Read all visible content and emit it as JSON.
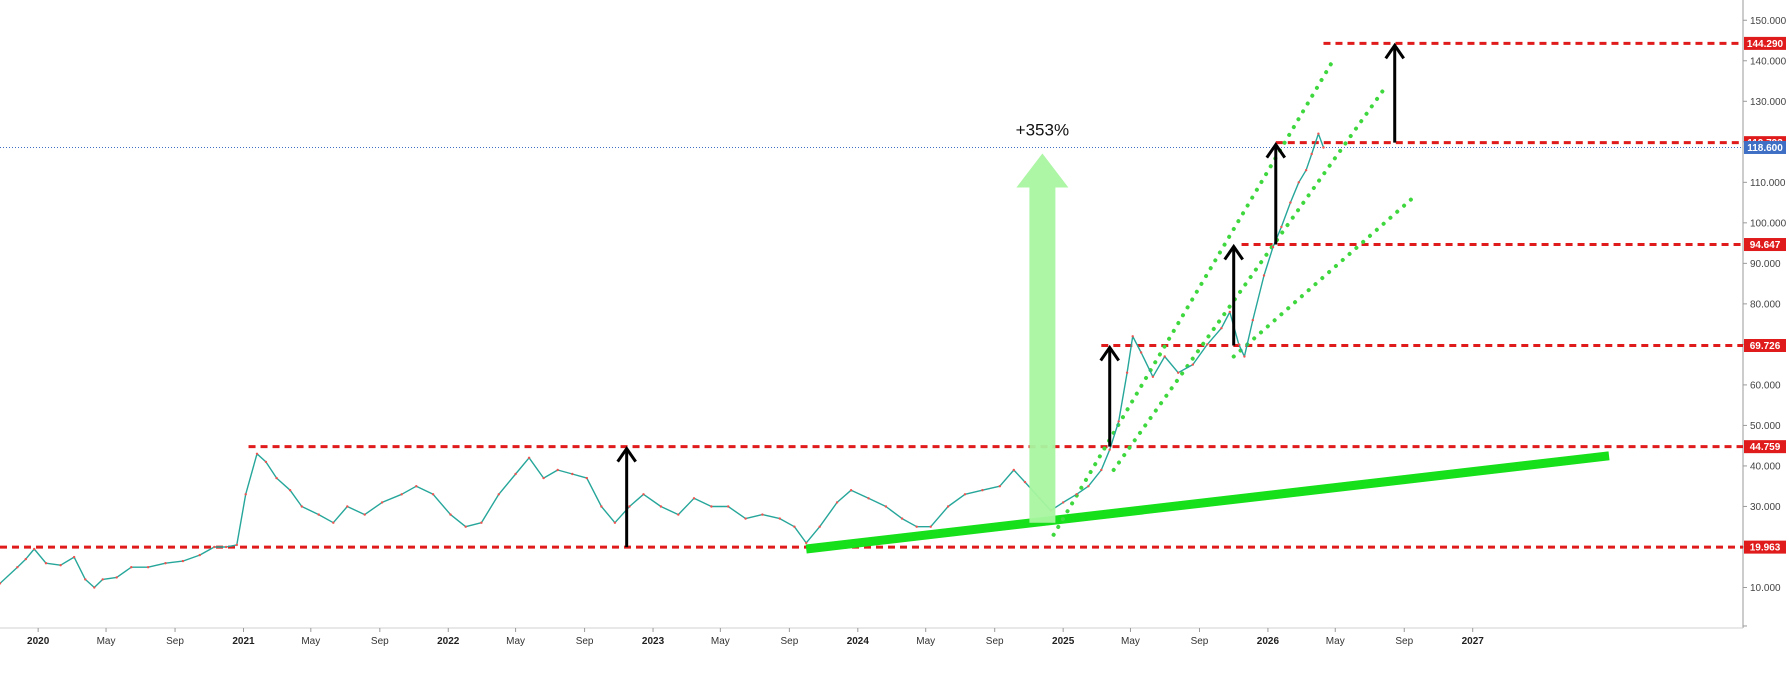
{
  "chart_data": {
    "type": "line",
    "title": "",
    "xlabel": "",
    "ylabel": "",
    "x_range": [
      "2019-10-25",
      "2028-04-25"
    ],
    "ylim": [
      0,
      155
    ],
    "y_ticks": [
      "10.000",
      "20.000",
      "30.000",
      "40.000",
      "50.000",
      "60.000",
      "70.000",
      "80.000",
      "90.000",
      "100.000",
      "110.000",
      "120.000",
      "130.000",
      "140.000",
      "150.000"
    ],
    "x_ticks": [
      {
        "label": "2020",
        "date": "2020-01-01",
        "year": true
      },
      {
        "label": "May",
        "date": "2020-05-01",
        "year": false
      },
      {
        "label": "Sep",
        "date": "2020-09-01",
        "year": false
      },
      {
        "label": "2021",
        "date": "2021-01-01",
        "year": true
      },
      {
        "label": "May",
        "date": "2021-05-01",
        "year": false
      },
      {
        "label": "Sep",
        "date": "2021-09-01",
        "year": false
      },
      {
        "label": "2022",
        "date": "2022-01-01",
        "year": true
      },
      {
        "label": "May",
        "date": "2022-05-01",
        "year": false
      },
      {
        "label": "Sep",
        "date": "2022-09-01",
        "year": false
      },
      {
        "label": "2023",
        "date": "2023-01-01",
        "year": true
      },
      {
        "label": "May",
        "date": "2023-05-01",
        "year": false
      },
      {
        "label": "Sep",
        "date": "2023-09-01",
        "year": false
      },
      {
        "label": "2024",
        "date": "2024-01-01",
        "year": true
      },
      {
        "label": "May",
        "date": "2024-05-01",
        "year": false
      },
      {
        "label": "Sep",
        "date": "2024-09-01",
        "year": false
      },
      {
        "label": "2025",
        "date": "2025-01-01",
        "year": true
      },
      {
        "label": "May",
        "date": "2025-05-01",
        "year": false
      },
      {
        "label": "Sep",
        "date": "2025-09-01",
        "year": false
      },
      {
        "label": "2026",
        "date": "2026-01-01",
        "year": true
      },
      {
        "label": "May",
        "date": "2026-05-01",
        "year": false
      },
      {
        "label": "Sep",
        "date": "2026-09-01",
        "year": false
      },
      {
        "label": "2027",
        "date": "2027-01-01",
        "year": true
      }
    ],
    "series": [
      {
        "color": "#26a69a",
        "points": [
          [
            "2019-10-25",
            11
          ],
          [
            "2019-11-25",
            15
          ],
          [
            "2019-12-10",
            17
          ],
          [
            "2019-12-25",
            19.5
          ],
          [
            "2020-01-15",
            16
          ],
          [
            "2020-02-10",
            15.5
          ],
          [
            "2020-03-05",
            17.5
          ],
          [
            "2020-03-25",
            12
          ],
          [
            "2020-04-10",
            10
          ],
          [
            "2020-04-25",
            12
          ],
          [
            "2020-05-20",
            12.5
          ],
          [
            "2020-06-15",
            15
          ],
          [
            "2020-07-15",
            15
          ],
          [
            "2020-08-15",
            16
          ],
          [
            "2020-09-15",
            16.5
          ],
          [
            "2020-10-15",
            18
          ],
          [
            "2020-11-10",
            20
          ],
          [
            "2020-12-01",
            20
          ],
          [
            "2020-12-20",
            20.5
          ],
          [
            "2021-01-05",
            33
          ],
          [
            "2021-01-25",
            43
          ],
          [
            "2021-02-10",
            41
          ],
          [
            "2021-03-01",
            37
          ],
          [
            "2021-03-25",
            34
          ],
          [
            "2021-04-15",
            30
          ],
          [
            "2021-05-15",
            28
          ],
          [
            "2021-06-10",
            26
          ],
          [
            "2021-07-05",
            30
          ],
          [
            "2021-08-05",
            28
          ],
          [
            "2021-09-05",
            31
          ],
          [
            "2021-10-10",
            33
          ],
          [
            "2021-11-05",
            35
          ],
          [
            "2021-12-05",
            33
          ],
          [
            "2022-01-05",
            28
          ],
          [
            "2022-02-01",
            25
          ],
          [
            "2022-03-01",
            26
          ],
          [
            "2022-04-01",
            33
          ],
          [
            "2022-05-01",
            38
          ],
          [
            "2022-05-25",
            42
          ],
          [
            "2022-06-20",
            37
          ],
          [
            "2022-07-15",
            39
          ],
          [
            "2022-08-10",
            38
          ],
          [
            "2022-09-05",
            37
          ],
          [
            "2022-10-01",
            30
          ],
          [
            "2022-10-25",
            26
          ],
          [
            "2022-11-20",
            30
          ],
          [
            "2022-12-15",
            33
          ],
          [
            "2023-01-15",
            30
          ],
          [
            "2023-02-15",
            28
          ],
          [
            "2023-03-15",
            32
          ],
          [
            "2023-04-15",
            30
          ],
          [
            "2023-05-15",
            30
          ],
          [
            "2023-06-15",
            27
          ],
          [
            "2023-07-15",
            28
          ],
          [
            "2023-08-15",
            27
          ],
          [
            "2023-09-10",
            25
          ],
          [
            "2023-10-01",
            21
          ],
          [
            "2023-10-25",
            25
          ],
          [
            "2023-11-25",
            31
          ],
          [
            "2023-12-20",
            34
          ],
          [
            "2024-01-20",
            32
          ],
          [
            "2024-02-20",
            30
          ],
          [
            "2024-03-20",
            27
          ],
          [
            "2024-04-15",
            25
          ],
          [
            "2024-05-10",
            25
          ],
          [
            "2024-06-10",
            30
          ],
          [
            "2024-07-10",
            33
          ],
          [
            "2024-08-10",
            34
          ],
          [
            "2024-09-10",
            35
          ],
          [
            "2024-10-05",
            39
          ],
          [
            "2024-10-25",
            36
          ],
          [
            "2024-11-20",
            32
          ],
          [
            "2024-12-10",
            29
          ],
          [
            "2025-01-01",
            31
          ],
          [
            "2025-01-25",
            33
          ],
          [
            "2025-02-15",
            35
          ],
          [
            "2025-03-10",
            39
          ],
          [
            "2025-03-25",
            44
          ],
          [
            "2025-04-10",
            51
          ],
          [
            "2025-04-25",
            63
          ],
          [
            "2025-05-05",
            72
          ],
          [
            "2025-05-20",
            68
          ],
          [
            "2025-06-10",
            62
          ],
          [
            "2025-07-01",
            67
          ],
          [
            "2025-07-25",
            63
          ],
          [
            "2025-08-20",
            65
          ],
          [
            "2025-09-15",
            70
          ],
          [
            "2025-10-10",
            74
          ],
          [
            "2025-10-25",
            78
          ],
          [
            "2025-11-10",
            70
          ],
          [
            "2025-11-20",
            67
          ],
          [
            "2025-12-05",
            76
          ],
          [
            "2025-12-25",
            87
          ],
          [
            "2026-01-10",
            94
          ],
          [
            "2026-01-25",
            99
          ],
          [
            "2026-02-10",
            105
          ],
          [
            "2026-02-25",
            110
          ],
          [
            "2026-03-10",
            113
          ],
          [
            "2026-03-20",
            117
          ],
          [
            "2026-04-01",
            122
          ],
          [
            "2026-04-10",
            118.6
          ]
        ]
      }
    ],
    "levels": [
      {
        "value": 144.29,
        "label": "144.290",
        "from": "2026-04-10"
      },
      {
        "value": 119.793,
        "label": "119.793",
        "from": "2026-01-15"
      },
      {
        "value": 94.647,
        "label": "94.647",
        "from": "2025-11-15"
      },
      {
        "value": 69.726,
        "label": "69.726",
        "from": "2025-03-10"
      },
      {
        "value": 44.759,
        "label": "44.759",
        "from": "2021-01-10"
      },
      {
        "value": 19.963,
        "label": "19.963",
        "from": "2019-10-25"
      }
    ],
    "current_price": {
      "value": 118.6,
      "label": "118.600",
      "color": "#3f6fc5"
    },
    "level_color": "#e01b1b",
    "support_trendline": {
      "color": "#16e01a",
      "from": [
        "2023-10-01",
        19.5
      ],
      "to": [
        "2027-09-01",
        42.5
      ]
    },
    "dotted_channels": [
      {
        "color": "#3ed83e",
        "from": [
          "2024-12-15",
          23
        ],
        "to": [
          "2026-05-01",
          141
        ]
      },
      {
        "color": "#3ed83e",
        "from": [
          "2025-04-01",
          39
        ],
        "to": [
          "2026-08-01",
          134
        ]
      },
      {
        "color": "#3ed83e",
        "from": [
          "2025-11-01",
          67
        ],
        "to": [
          "2026-09-15",
          106
        ]
      }
    ],
    "arrows": [
      {
        "date": "2022-11-15",
        "from": 19.963,
        "to": 44.759
      },
      {
        "date": "2025-03-25",
        "from": 44.759,
        "to": 69.726
      },
      {
        "date": "2025-11-01",
        "from": 69.726,
        "to": 94.647
      },
      {
        "date": "2026-01-15",
        "from": 94.647,
        "to": 119.793
      },
      {
        "date": "2026-08-15",
        "from": 119.793,
        "to": 144.29
      }
    ],
    "gain_arrow": {
      "date": "2024-11-25",
      "from": 26,
      "to": 118.6,
      "color": "#a8f5a0",
      "label": "+353%",
      "label_value": 123
    }
  }
}
